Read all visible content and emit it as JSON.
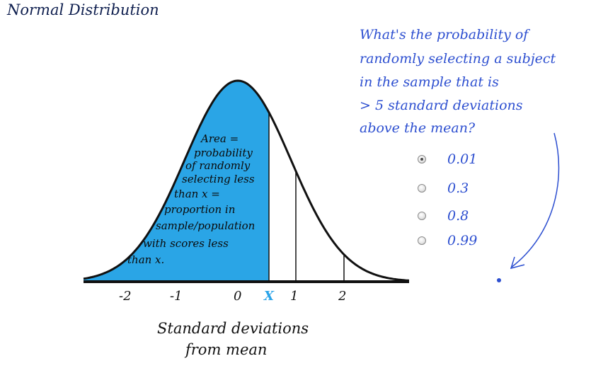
{
  "title": "Normal Distribution",
  "question": {
    "lines": [
      "What's the probability of",
      "randomly selecting a subject",
      "in the sample that is",
      "> 5 standard deviations",
      "above the mean?"
    ]
  },
  "options": [
    {
      "label": "0.01",
      "selected": true
    },
    {
      "label": "0.3",
      "selected": false
    },
    {
      "label": "0.8",
      "selected": false
    },
    {
      "label": "0.99",
      "selected": false
    }
  ],
  "area_annotation": {
    "lines": [
      "Area =",
      "probability",
      "of randomly",
      "selecting less",
      "than x =",
      "proportion in",
      "sample/population",
      "with scores less",
      "than x."
    ]
  },
  "axis": {
    "ticks": [
      "-2",
      "-1",
      "0",
      "1",
      "2"
    ],
    "x_marker": "X",
    "label_line1": "Standard deviations",
    "label_line2": "from mean"
  },
  "colors": {
    "shaded_area": "#2aa5e6",
    "question_text": "#2d4fd0",
    "title_text": "#0f1f4f",
    "marker": "#29a3e8"
  }
}
